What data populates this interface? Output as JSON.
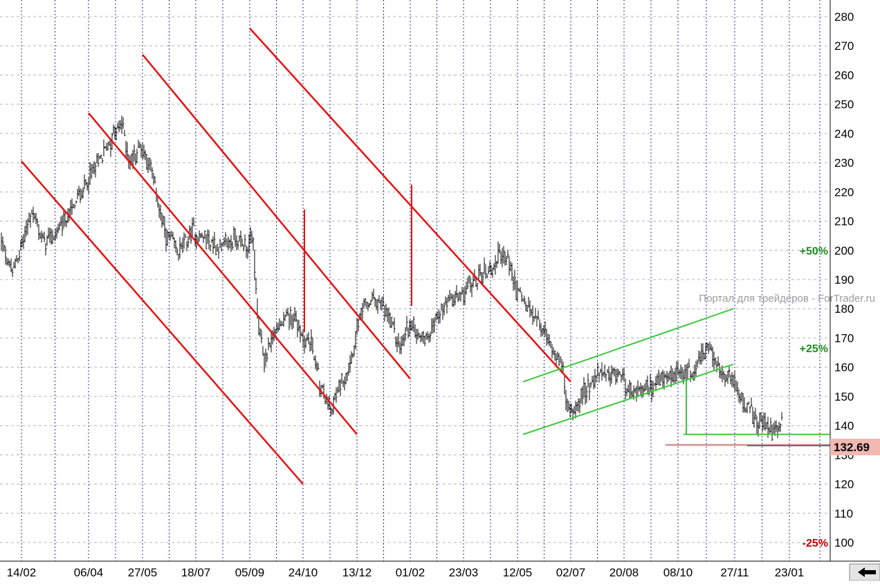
{
  "chart_data": {
    "type": "line",
    "style": "OHLC bars",
    "ylim": [
      94,
      285
    ],
    "y_ticks": [
      100,
      110,
      120,
      130,
      140,
      150,
      160,
      170,
      180,
      190,
      200,
      210,
      220,
      230,
      240,
      250,
      260,
      270,
      280
    ],
    "y_axis_side": "right",
    "grid": {
      "horizontal": "dashed gray",
      "vertical": "dotted blue"
    },
    "x_date_labels": [
      "14/02",
      "06/04",
      "27/05",
      "18/07",
      "05/09",
      "24/10",
      "13/12",
      "01/02",
      "23/03",
      "12/05",
      "02/07",
      "20/08",
      "08/10",
      "27/11",
      "23/01"
    ],
    "n_bars": 565,
    "last_price": "132.69",
    "anchors": [
      [
        0,
        202
      ],
      [
        8,
        192
      ],
      [
        18,
        207
      ],
      [
        22,
        214
      ],
      [
        30,
        203
      ],
      [
        38,
        205
      ],
      [
        48,
        212
      ],
      [
        58,
        220
      ],
      [
        68,
        228
      ],
      [
        80,
        239
      ],
      [
        87,
        243
      ],
      [
        93,
        230
      ],
      [
        100,
        236
      ],
      [
        108,
        228
      ],
      [
        118,
        206
      ],
      [
        128,
        199
      ],
      [
        138,
        206
      ],
      [
        148,
        204
      ],
      [
        158,
        201
      ],
      [
        168,
        204
      ],
      [
        176,
        202
      ],
      [
        182,
        203
      ],
      [
        185,
        176
      ],
      [
        190,
        162
      ],
      [
        197,
        172
      ],
      [
        205,
        176
      ],
      [
        212,
        177
      ],
      [
        218,
        170
      ],
      [
        224,
        168
      ],
      [
        231,
        152
      ],
      [
        238,
        145
      ],
      [
        245,
        154
      ],
      [
        252,
        162
      ],
      [
        258,
        175
      ],
      [
        264,
        182
      ],
      [
        270,
        183
      ],
      [
        276,
        180
      ],
      [
        282,
        174
      ],
      [
        288,
        166
      ],
      [
        294,
        174
      ],
      [
        300,
        173
      ],
      [
        306,
        170
      ],
      [
        312,
        175
      ],
      [
        318,
        180
      ],
      [
        324,
        182
      ],
      [
        330,
        184
      ],
      [
        336,
        187
      ],
      [
        342,
        189
      ],
      [
        348,
        192
      ],
      [
        354,
        194
      ],
      [
        360,
        198
      ],
      [
        366,
        197
      ],
      [
        372,
        186
      ],
      [
        378,
        182
      ],
      [
        384,
        178
      ],
      [
        390,
        174
      ],
      [
        396,
        168
      ],
      [
        402,
        165
      ],
      [
        406,
        158
      ],
      [
        410,
        143
      ],
      [
        416,
        148
      ],
      [
        422,
        152
      ],
      [
        428,
        156
      ],
      [
        434,
        158
      ],
      [
        440,
        155
      ],
      [
        446,
        158
      ],
      [
        452,
        154
      ],
      [
        458,
        150
      ],
      [
        464,
        152
      ],
      [
        470,
        153
      ],
      [
        476,
        156
      ],
      [
        482,
        155
      ],
      [
        488,
        157
      ],
      [
        494,
        158
      ],
      [
        500,
        159
      ],
      [
        506,
        164
      ],
      [
        510,
        167
      ],
      [
        516,
        161
      ],
      [
        522,
        157
      ],
      [
        528,
        155
      ],
      [
        534,
        151
      ],
      [
        540,
        145
      ],
      [
        546,
        141
      ],
      [
        552,
        140
      ],
      [
        558,
        138
      ],
      [
        564,
        141
      ],
      [
        570,
        141
      ],
      [
        576,
        141
      ],
      [
        582,
        143
      ],
      [
        588,
        145
      ],
      [
        594,
        147
      ],
      [
        600,
        148
      ],
      [
        606,
        146
      ],
      [
        612,
        142
      ],
      [
        618,
        138
      ],
      [
        622,
        135
      ],
      [
        624,
        133
      ]
    ],
    "channel_lines_red": [
      {
        "from": [
          "14/02",
          230.5
        ],
        "to": [
          "24/10",
          120
        ]
      },
      {
        "from": [
          "06/04",
          247
        ],
        "to": [
          "13/12",
          137
        ]
      },
      {
        "from": [
          "27/05",
          267
        ],
        "to": [
          "01/02",
          156
        ]
      },
      {
        "from": [
          "05/09",
          276
        ],
        "to": [
          "02/07",
          155
        ]
      }
    ],
    "range_markers_red": [
      {
        "date": "24/10",
        "from": 172,
        "to": 214
      },
      {
        "date": "01/02",
        "from": 181,
        "to": 222.5
      }
    ],
    "channel_lines_green": [
      {
        "from": [
          "12/05",
          155
        ],
        "to": [
          "08/10",
          180
        ]
      },
      {
        "from": [
          "12/05",
          137
        ],
        "to": [
          "08/10",
          161
        ]
      }
    ],
    "support_green": {
      "level": 137,
      "from": "08/10",
      "to": "23/01"
    },
    "range_marker_green": {
      "date": "08/10",
      "from": 137,
      "to": 156
    },
    "price_line_pink": 133.4,
    "levels": [
      {
        "label": "+50%",
        "value": 200,
        "color": "#1e8c1e"
      },
      {
        "label": "+25%",
        "value": 166.5,
        "color": "#1e8c1e"
      },
      {
        "label": "-25%",
        "value": 100,
        "color": "#c00000"
      }
    ]
  },
  "watermark": "Портал для трейдеров - ForTrader.ru",
  "controls": {
    "scroll_button_icon": "left-arrow-icon"
  },
  "colors": {
    "bars": "#000000",
    "red_lines": "#e81010",
    "green_lines": "#3cc83c",
    "grid_vertical": "#2828a0",
    "grid_horizontal": "#b4b4b4",
    "last_label_bg": "#f2b8b2",
    "price_line": "#d88a8a"
  }
}
